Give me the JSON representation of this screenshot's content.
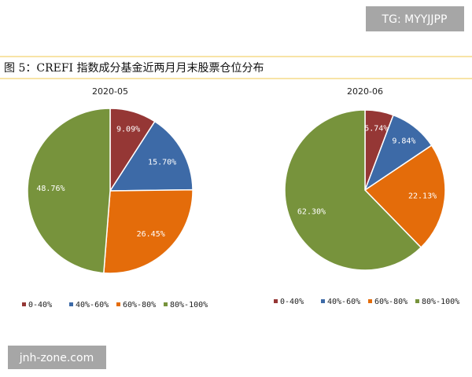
{
  "caption": "图 5：CREFI 指数成分基金近两月月末股票仓位分布",
  "watermarks": [
    "TG: MYYJJPP",
    "jnh-zone.com"
  ],
  "chart_data": [
    {
      "type": "pie",
      "title": "2020-05",
      "categories": [
        "0-40%",
        "40%-60%",
        "60%-80%",
        "80%-100%"
      ],
      "values": [
        9.09,
        15.7,
        26.45,
        48.76
      ],
      "value_labels": [
        "9.09%",
        "15.70%",
        "26.45%",
        "48.76%"
      ],
      "colors": [
        "#953735",
        "#3d6aa7",
        "#e46c0a",
        "#77933c"
      ]
    },
    {
      "type": "pie",
      "title": "2020-06",
      "categories": [
        "0-40%",
        "40%-60%",
        "60%-80%",
        "80%-100%"
      ],
      "values": [
        5.74,
        9.84,
        22.13,
        62.3
      ],
      "value_labels": [
        "5.74%",
        "9.84%",
        "22.13%",
        "62.30%"
      ],
      "colors": [
        "#953735",
        "#3d6aa7",
        "#e46c0a",
        "#77933c"
      ]
    }
  ]
}
